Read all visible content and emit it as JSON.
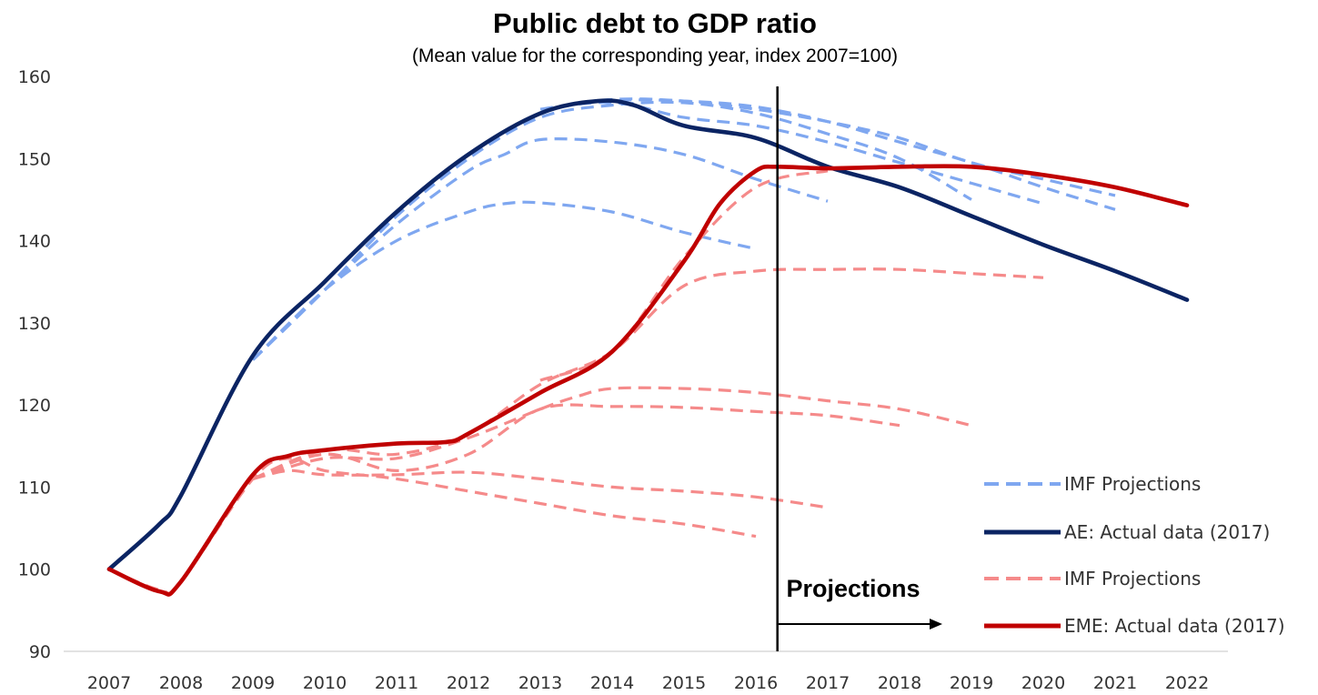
{
  "chart_data": {
    "type": "line",
    "title": "Public debt to GDP ratio",
    "subtitle": "(Mean value for the corresponding year, index 2007=100)",
    "xlabel": "",
    "ylabel": "",
    "x_ticks": [
      "2007",
      "2008",
      "2009",
      "2010",
      "2011",
      "2012",
      "2013",
      "2014",
      "2015",
      "2016",
      "2017",
      "2018",
      "2019",
      "2020",
      "2021",
      "2022"
    ],
    "y_ticks": [
      "90",
      "100",
      "110",
      "120",
      "130",
      "140",
      "150",
      "160"
    ],
    "xlim": [
      2007,
      2022
    ],
    "ylim": [
      90,
      160
    ],
    "grid": false,
    "legend_position": "bottom-right",
    "colors": {
      "ae_actual": "#0b2463",
      "ae_proj": "#7fa7f0",
      "eme_actual": "#c00000",
      "eme_proj": "#f58a8a",
      "divider": "#000000"
    },
    "series": [
      {
        "name": "AE: Actual data (2017)",
        "group": "ae",
        "style": "solid",
        "x": [
          2007,
          2007.7,
          2008,
          2009,
          2010,
          2011,
          2012,
          2013,
          2013.8,
          2014.3,
          2015,
          2016,
          2017,
          2018,
          2019,
          2020,
          2021,
          2022
        ],
        "y": [
          100,
          105.5,
          109,
          126,
          135,
          143.5,
          150.5,
          155.5,
          157,
          156.5,
          154,
          152.5,
          149,
          146.5,
          143,
          139.5,
          136.3,
          132.8
        ]
      },
      {
        "name": "IMF Projections",
        "group": "ae",
        "style": "dashed",
        "x": [
          2009,
          2010,
          2011,
          2012,
          2012.5,
          2013,
          2014,
          2015,
          2016
        ],
        "y": [
          125.5,
          134,
          140,
          143.5,
          144.5,
          144.6,
          143.5,
          141,
          139
        ]
      },
      {
        "group": "ae",
        "style": "dashed",
        "x": [
          2009,
          2010,
          2011,
          2012,
          2012.5,
          2013,
          2014,
          2015,
          2016,
          2017
        ],
        "y": [
          125.5,
          134,
          142,
          148.5,
          150.5,
          152.3,
          152,
          150.5,
          147.5,
          144.8
        ]
      },
      {
        "group": "ae",
        "style": "dashed",
        "x": [
          2009,
          2010,
          2011,
          2012,
          2013,
          2014,
          2015,
          2016,
          2017,
          2018,
          2019
        ],
        "y": [
          125.5,
          134,
          143,
          150,
          155,
          156.5,
          156.8,
          155.5,
          153,
          150,
          145
        ]
      },
      {
        "group": "ae",
        "style": "dashed",
        "x": [
          2009,
          2010,
          2011,
          2012,
          2013,
          2014,
          2015,
          2016,
          2017,
          2018,
          2019,
          2020,
          2021
        ],
        "y": [
          125.5,
          134,
          143,
          150,
          155.5,
          157,
          157,
          156.3,
          154.5,
          152,
          149.5,
          146.5,
          143.8
        ]
      },
      {
        "group": "ae",
        "style": "dashed",
        "x": [
          2009,
          2010,
          2011,
          2012,
          2013,
          2014,
          2015,
          2016,
          2017,
          2018,
          2019,
          2020
        ],
        "y": [
          125.5,
          134,
          143,
          150,
          155.5,
          156.8,
          155,
          154,
          152,
          149.5,
          147,
          144.5
        ]
      },
      {
        "group": "ae",
        "style": "dashed",
        "x": [
          2013,
          2014,
          2015,
          2016,
          2017,
          2018,
          2019,
          2020,
          2021
        ],
        "y": [
          156,
          157.2,
          157,
          156,
          154.5,
          152.5,
          149.5,
          147.5,
          145.5
        ]
      },
      {
        "name": "EME: Actual data (2017)",
        "group": "eme",
        "style": "solid",
        "x": [
          2007,
          2007.7,
          2008,
          2009,
          2009.5,
          2010,
          2011,
          2011.7,
          2012,
          2013,
          2014,
          2015,
          2015.5,
          2016,
          2016.3,
          2017,
          2018,
          2019,
          2020,
          2021,
          2022
        ],
        "y": [
          100,
          97.3,
          98.5,
          111.5,
          113.8,
          114.5,
          115.3,
          115.5,
          116.5,
          121.5,
          126.5,
          137.5,
          144.5,
          148.5,
          149,
          148.8,
          149,
          149,
          148,
          146.5,
          144.3
        ]
      },
      {
        "name": "IMF Projections",
        "group": "eme",
        "style": "dashed",
        "x": [
          2007,
          2007.7,
          2008,
          2009,
          2009.5,
          2010,
          2011,
          2012,
          2013,
          2014,
          2015,
          2016
        ],
        "y": [
          100,
          97.5,
          98.5,
          111,
          113.5,
          112,
          111,
          109.5,
          108,
          106.5,
          105.5,
          104
        ]
      },
      {
        "group": "eme",
        "style": "dashed",
        "x": [
          2009,
          2009.5,
          2010,
          2011,
          2012,
          2013,
          2014,
          2015,
          2016,
          2017
        ],
        "y": [
          111,
          112,
          111.5,
          111.5,
          111.8,
          111,
          110,
          109.5,
          108.8,
          107.5
        ]
      },
      {
        "group": "eme",
        "style": "dashed",
        "x": [
          2009,
          2010,
          2011,
          2012,
          2013,
          2014,
          2015,
          2016,
          2017,
          2018
        ],
        "y": [
          111,
          114,
          112,
          114,
          119.5,
          119.8,
          119.7,
          119.2,
          118.7,
          117.5
        ]
      },
      {
        "group": "eme",
        "style": "dashed",
        "x": [
          2009,
          2010,
          2011,
          2012,
          2013,
          2013.5,
          2014,
          2015,
          2016,
          2017,
          2018,
          2019
        ],
        "y": [
          111,
          113.5,
          113.5,
          116,
          119.5,
          121,
          122,
          122,
          121.5,
          120.5,
          119.5,
          117.5
        ]
      },
      {
        "group": "eme",
        "style": "dashed",
        "x": [
          2009,
          2010,
          2011,
          2012,
          2013,
          2014,
          2015,
          2016,
          2017,
          2018,
          2019,
          2020
        ],
        "y": [
          111,
          114.5,
          114,
          116.5,
          122.5,
          126.5,
          134.5,
          136.3,
          136.5,
          136.5,
          136,
          135.5
        ]
      },
      {
        "group": "eme",
        "style": "dashed",
        "x": [
          2013,
          2014,
          2015,
          2016,
          2017
        ],
        "y": [
          123,
          126.5,
          138,
          146.5,
          148.5
        ]
      }
    ],
    "vertical_line_at": 2016.3,
    "annotations": [
      {
        "text": "Projections",
        "arrow": "right"
      }
    ],
    "legend": [
      {
        "label": "IMF Projections",
        "style": "dashed",
        "color_key": "ae_proj"
      },
      {
        "label": "AE: Actual data (2017)",
        "style": "solid",
        "color_key": "ae_actual"
      },
      {
        "label": "IMF Projections",
        "style": "dashed",
        "color_key": "eme_proj"
      },
      {
        "label": "EME: Actual data (2017)",
        "style": "solid",
        "color_key": "eme_actual"
      }
    ]
  }
}
